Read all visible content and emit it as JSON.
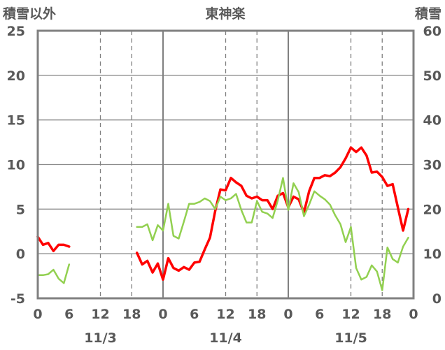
{
  "chart_data": {
    "type": "line",
    "title": "東神楽",
    "y_left_label": "積雪以外",
    "y_right_label": "積雪",
    "ylim_left": [
      -5,
      25
    ],
    "ylim_right": [
      0,
      60
    ],
    "y_left_ticks": [
      "25",
      "20",
      "15",
      "10",
      "5",
      "0",
      "-5"
    ],
    "y_right_ticks": [
      "60",
      "50",
      "40",
      "30",
      "20",
      "10",
      "0"
    ],
    "xlim": [
      0,
      72
    ],
    "x_ticks": [
      {
        "x": 0,
        "label": "0"
      },
      {
        "x": 6,
        "label": "6"
      },
      {
        "x": 12,
        "label": "12"
      },
      {
        "x": 18,
        "label": "18"
      },
      {
        "x": 24,
        "label": "0"
      },
      {
        "x": 30,
        "label": "6"
      },
      {
        "x": 36,
        "label": "12"
      },
      {
        "x": 42,
        "label": "18"
      },
      {
        "x": 48,
        "label": "0"
      },
      {
        "x": 54,
        "label": "6"
      },
      {
        "x": 60,
        "label": "12"
      },
      {
        "x": 66,
        "label": "18"
      },
      {
        "x": 72,
        "label": "0"
      }
    ],
    "date_labels": [
      {
        "x": 12,
        "label": "11/3"
      },
      {
        "x": 36,
        "label": "11/4"
      },
      {
        "x": 60,
        "label": "11/5"
      }
    ],
    "grid": {
      "solid_x": [
        24,
        48
      ],
      "dashed_x": [
        12,
        36,
        60
      ],
      "dashed_halfday_x": [
        6,
        18,
        30,
        42,
        54,
        66
      ],
      "y": [
        0,
        5,
        10,
        15,
        20
      ]
    },
    "series": [
      {
        "name": "",
        "axis": "left",
        "color": "#ff0000",
        "points": [
          [
            0,
            1.9
          ],
          [
            1,
            1.0
          ],
          [
            2,
            1.2
          ],
          [
            3,
            0.3
          ],
          [
            4,
            1.0
          ],
          [
            5,
            1.0
          ],
          [
            6,
            0.8
          ],
          null,
          [
            19,
            0.1
          ],
          [
            20,
            -1.2
          ],
          [
            21,
            -0.8
          ],
          [
            22,
            -2.1
          ],
          [
            23,
            -1.1
          ],
          [
            24,
            -2.9
          ],
          [
            25,
            -0.5
          ],
          [
            26,
            -1.6
          ],
          [
            27,
            -1.9
          ],
          [
            28,
            -1.5
          ],
          [
            29,
            -1.8
          ],
          [
            30,
            -1.0
          ],
          [
            31,
            -0.9
          ],
          [
            32,
            0.5
          ],
          [
            33,
            1.8
          ],
          [
            34,
            4.8
          ],
          [
            35,
            7.2
          ],
          [
            36,
            7.1
          ],
          [
            37,
            8.5
          ],
          [
            38,
            8.0
          ],
          [
            39,
            7.6
          ],
          [
            40,
            6.5
          ],
          [
            41,
            6.2
          ],
          [
            42,
            6.4
          ],
          [
            43,
            6.0
          ],
          [
            44,
            6.0
          ],
          [
            45,
            5.0
          ],
          [
            46,
            6.5
          ],
          [
            47,
            6.8
          ],
          [
            48,
            5.2
          ],
          [
            49,
            6.4
          ],
          [
            50,
            6.1
          ],
          [
            51,
            4.6
          ],
          [
            52,
            7.0
          ],
          [
            53,
            8.5
          ],
          [
            54,
            8.5
          ],
          [
            55,
            8.8
          ],
          [
            56,
            8.7
          ],
          [
            57,
            9.1
          ],
          [
            58,
            9.7
          ],
          [
            59,
            10.7
          ],
          [
            60,
            11.9
          ],
          [
            61,
            11.4
          ],
          [
            62,
            11.9
          ],
          [
            63,
            11.0
          ],
          [
            64,
            9.1
          ],
          [
            65,
            9.2
          ],
          [
            66,
            8.6
          ],
          [
            67,
            7.6
          ],
          [
            68,
            7.8
          ],
          [
            69,
            5.2
          ],
          [
            70,
            2.6
          ],
          [
            71,
            5.0
          ]
        ]
      },
      {
        "name": "",
        "axis": "left",
        "color": "#92d050",
        "points": [
          [
            0,
            -2.4
          ],
          [
            1,
            -2.4
          ],
          [
            2,
            -2.3
          ],
          [
            3,
            -1.8
          ],
          [
            4,
            -2.8
          ],
          [
            5,
            -3.3
          ],
          [
            6,
            -1.2
          ],
          null,
          [
            19,
            3.0
          ],
          [
            20,
            3.0
          ],
          [
            21,
            3.3
          ],
          [
            22,
            1.5
          ],
          [
            23,
            3.2
          ],
          [
            24,
            2.6
          ],
          [
            25,
            5.6
          ],
          [
            26,
            2.0
          ],
          [
            27,
            1.7
          ],
          [
            28,
            3.6
          ],
          [
            29,
            5.6
          ],
          [
            30,
            5.6
          ],
          [
            31,
            5.8
          ],
          [
            32,
            6.2
          ],
          [
            33,
            5.9
          ],
          [
            34,
            5.0
          ],
          [
            35,
            6.4
          ],
          [
            36,
            6.0
          ],
          [
            37,
            6.2
          ],
          [
            38,
            6.7
          ],
          [
            39,
            4.9
          ],
          [
            40,
            3.5
          ],
          [
            41,
            3.5
          ],
          [
            42,
            5.9
          ],
          [
            43,
            4.7
          ],
          [
            44,
            4.5
          ],
          [
            45,
            4.0
          ],
          [
            46,
            6.0
          ],
          [
            47,
            8.5
          ],
          [
            48,
            4.9
          ],
          [
            49,
            7.9
          ],
          [
            50,
            6.9
          ],
          [
            51,
            4.2
          ],
          [
            52,
            5.5
          ],
          [
            53,
            7.0
          ],
          [
            54,
            6.5
          ],
          [
            55,
            6.1
          ],
          [
            56,
            5.5
          ],
          [
            57,
            4.3
          ],
          [
            58,
            3.3
          ],
          [
            59,
            1.3
          ],
          [
            60,
            3.0
          ],
          [
            61,
            -1.6
          ],
          [
            62,
            -2.9
          ],
          [
            63,
            -2.6
          ],
          [
            64,
            -1.3
          ],
          [
            65,
            -2.0
          ],
          [
            66,
            -4.1
          ],
          [
            67,
            0.7
          ],
          [
            68,
            -0.6
          ],
          [
            69,
            -1.0
          ],
          [
            70,
            0.8
          ],
          [
            71,
            1.8
          ]
        ]
      },
      {
        "name": "",
        "axis": "left",
        "color": "#7030a0",
        "points": [
          [
            0,
            -5
          ],
          [
            6,
            -5
          ],
          null,
          [
            19,
            -5
          ],
          [
            71,
            -5
          ]
        ]
      }
    ]
  }
}
